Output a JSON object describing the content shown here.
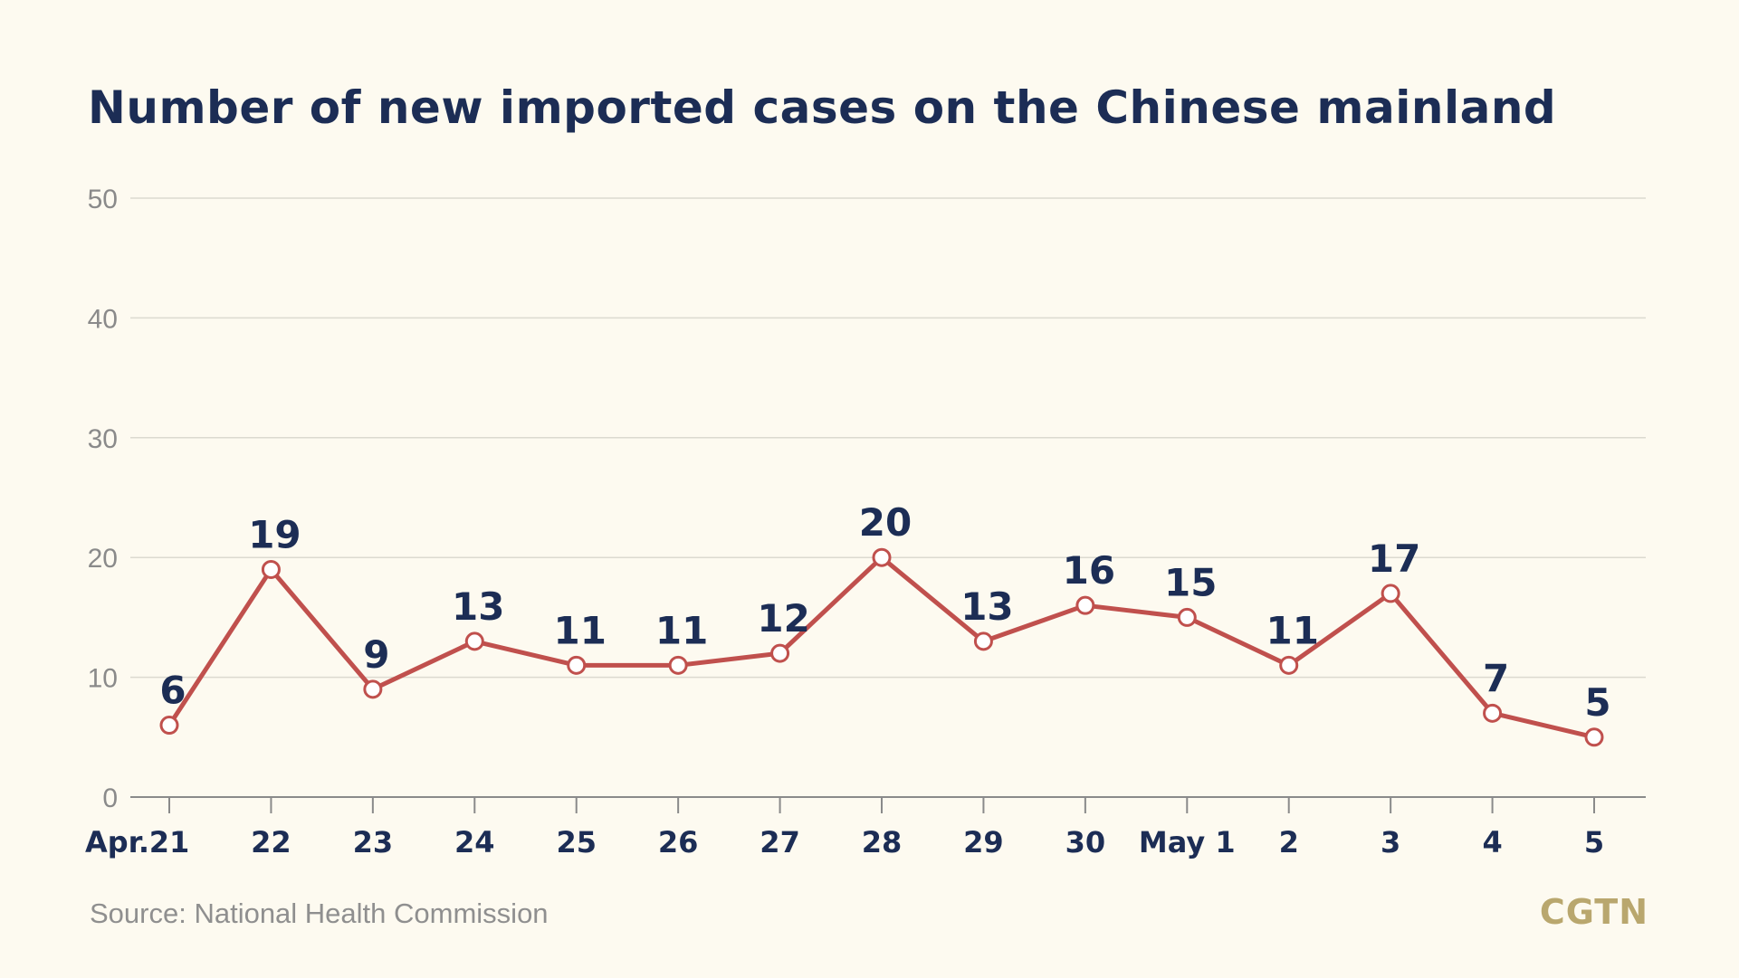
{
  "chart_data": {
    "type": "line",
    "title": "Number of new imported cases on the Chinese mainland",
    "xlabel": "",
    "ylabel": "",
    "categories": [
      "21",
      "22",
      "23",
      "24",
      "25",
      "26",
      "27",
      "28",
      "29",
      "30",
      "May 1",
      "2",
      "3",
      "4",
      "5"
    ],
    "month_prefix": "Apr.",
    "values": [
      6,
      19,
      9,
      13,
      11,
      11,
      12,
      20,
      13,
      16,
      15,
      11,
      17,
      7,
      5
    ],
    "yticks": [
      0,
      10,
      20,
      30,
      40,
      50
    ],
    "ylim": [
      0,
      50
    ],
    "grid": true,
    "line_color": "#c0504d",
    "label_color": "#1c2d55"
  },
  "source": "Source: National Health Commission",
  "logo": "CGTN"
}
